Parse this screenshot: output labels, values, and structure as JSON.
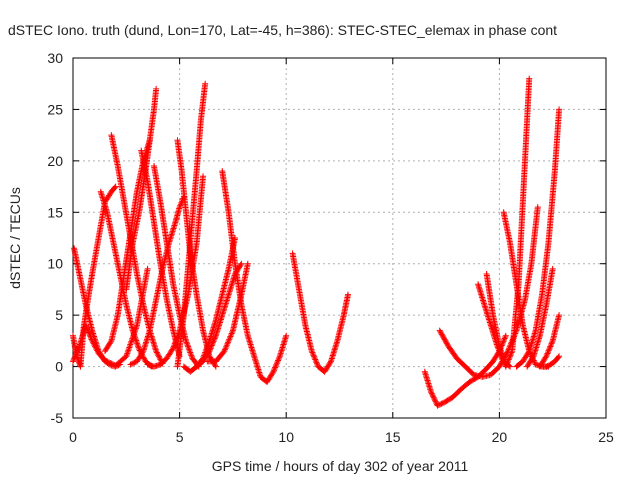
{
  "chart_data": {
    "type": "scatter",
    "title": "dSTEC Iono. truth (dund, Lon=170, Lat=-45, h=386): STEC-STEC_elemax in phase cont",
    "xlabel": "GPS time / hours of day 302 of year 2011",
    "ylabel": "dSTEC  / TECUs",
    "xlim": [
      0,
      25
    ],
    "ylim": [
      -5,
      30
    ],
    "xticks": [
      0,
      5,
      10,
      15,
      20,
      25
    ],
    "yticks": [
      -5,
      0,
      5,
      10,
      15,
      20,
      25,
      30
    ],
    "grid": true,
    "marker": "plus",
    "color": "#ff0000",
    "arcs": [
      {
        "x": [
          0.0,
          0.1,
          0.2,
          0.35,
          0.5,
          0.7,
          0.9,
          1.2,
          1.5,
          1.8,
          2.0
        ],
        "y": [
          3.0,
          1.8,
          0.9,
          0.0,
          3.8,
          6.5,
          9.0,
          12.5,
          16.0,
          17.0,
          17.5
        ]
      },
      {
        "x": [
          0.05,
          0.3,
          0.6,
          0.9,
          1.2,
          1.5,
          1.8,
          2.0,
          2.2
        ],
        "y": [
          11.5,
          9.0,
          6.0,
          3.5,
          1.5,
          0.5,
          0.1,
          0.0,
          0.2
        ]
      },
      {
        "x": [
          0.0,
          0.3,
          0.6,
          0.9,
          1.2,
          1.5,
          2.0,
          2.5,
          3.0,
          3.5
        ],
        "y": [
          0.5,
          2.0,
          4.0,
          2.5,
          1.3,
          0.6,
          0.1,
          1.0,
          4.0,
          9.5
        ]
      },
      {
        "x": [
          1.3,
          1.6,
          1.9,
          2.2,
          2.5,
          2.8,
          3.1,
          3.4,
          3.7
        ],
        "y": [
          17.0,
          15.0,
          12.0,
          9.0,
          6.0,
          3.5,
          1.7,
          0.5,
          0.0
        ]
      },
      {
        "x": [
          1.5,
          1.8,
          2.1,
          2.4,
          2.7,
          3.0,
          3.3,
          3.6
        ],
        "y": [
          1.5,
          2.5,
          5.0,
          9.0,
          13.0,
          17.0,
          20.0,
          22.0
        ]
      },
      {
        "x": [
          1.8,
          2.1,
          2.4,
          2.7,
          3.0,
          3.3,
          3.6,
          3.9,
          4.2
        ],
        "y": [
          22.5,
          19.5,
          16.0,
          12.5,
          9.0,
          6.0,
          3.5,
          1.5,
          0.3
        ]
      },
      {
        "x": [
          2.5,
          2.8,
          3.1,
          3.4,
          3.6,
          3.8,
          3.9
        ],
        "y": [
          7.5,
          12.0,
          15.0,
          19.0,
          22.0,
          25.0,
          27.0
        ]
      },
      {
        "x": [
          2.7,
          3.0,
          3.3,
          3.6,
          3.9,
          4.2,
          4.5,
          4.8,
          5.0,
          5.2
        ],
        "y": [
          0.2,
          0.5,
          1.5,
          3.5,
          6.5,
          9.5,
          12.0,
          14.0,
          15.5,
          16.5
        ]
      },
      {
        "x": [
          3.2,
          3.5,
          3.8,
          4.1,
          4.4,
          4.7,
          5.0
        ],
        "y": [
          21.0,
          18.0,
          14.0,
          10.0,
          6.5,
          3.5,
          1.0
        ]
      },
      {
        "x": [
          3.5,
          3.8,
          4.1,
          4.4,
          4.7,
          5.0,
          5.4,
          5.8,
          6.1
        ],
        "y": [
          0.2,
          0.0,
          0.2,
          0.8,
          1.8,
          3.5,
          7.0,
          12.0,
          18.5
        ]
      },
      {
        "x": [
          3.8,
          4.1,
          4.4,
          4.7,
          5.0,
          5.3,
          5.6,
          5.9
        ],
        "y": [
          19.5,
          16.0,
          12.0,
          8.0,
          5.0,
          2.5,
          0.8,
          0.0
        ]
      },
      {
        "x": [
          4.9,
          5.1,
          5.3,
          5.5,
          5.8,
          6.1,
          6.4,
          6.7
        ],
        "y": [
          22.0,
          19.0,
          15.0,
          11.0,
          7.0,
          3.5,
          1.0,
          0.0
        ]
      },
      {
        "x": [
          4.9,
          5.2,
          5.5,
          5.8,
          6.0,
          6.2
        ],
        "y": [
          0.0,
          5.0,
          12.0,
          19.0,
          24.0,
          27.5
        ]
      },
      {
        "x": [
          5.2,
          5.5,
          5.8,
          6.1,
          6.4,
          6.7,
          7.0,
          7.3,
          7.6,
          7.9
        ],
        "y": [
          0.0,
          -0.5,
          0.0,
          0.5,
          1.5,
          3.0,
          5.0,
          7.0,
          9.0,
          10.0
        ]
      },
      {
        "x": [
          5.8,
          6.1,
          6.4,
          6.7,
          7.0,
          7.3,
          7.6
        ],
        "y": [
          0.0,
          0.8,
          2.5,
          4.5,
          7.0,
          9.5,
          12.5
        ]
      },
      {
        "x": [
          7.0,
          7.3,
          7.6,
          7.9,
          8.2,
          8.5,
          8.8,
          9.1,
          9.4,
          9.7,
          10.0
        ],
        "y": [
          19.0,
          15.0,
          10.0,
          6.0,
          3.0,
          1.0,
          -1.0,
          -1.5,
          -0.5,
          1.0,
          3.0
        ]
      },
      {
        "x": [
          6.3,
          6.7,
          7.1,
          7.5,
          7.9,
          8.2
        ],
        "y": [
          0.5,
          0.5,
          1.5,
          3.5,
          7.0,
          10.0
        ]
      },
      {
        "x": [
          10.3,
          10.6,
          10.9,
          11.2,
          11.5,
          11.8,
          12.1,
          12.4,
          12.7,
          12.9
        ],
        "y": [
          11.0,
          7.5,
          4.0,
          1.5,
          0.0,
          -0.5,
          0.5,
          2.5,
          5.0,
          7.0
        ]
      },
      {
        "x": [
          16.5,
          16.8,
          17.1,
          17.4,
          17.8,
          18.2,
          18.6,
          19.0,
          19.4,
          19.7,
          20.0,
          20.3
        ],
        "y": [
          -0.5,
          -2.5,
          -3.8,
          -3.5,
          -3.0,
          -2.2,
          -1.5,
          -1.0,
          -0.2,
          0.5,
          1.5,
          3.0
        ]
      },
      {
        "x": [
          17.2,
          17.6,
          18.0,
          18.4,
          18.8,
          19.2,
          19.6,
          20.0,
          20.4,
          20.8,
          21.2,
          21.5,
          21.8
        ],
        "y": [
          3.5,
          2.0,
          0.8,
          0.0,
          -0.8,
          -1.0,
          -0.8,
          0.0,
          1.5,
          3.5,
          6.5,
          10.0,
          15.5
        ]
      },
      {
        "x": [
          19.0,
          19.3,
          19.6,
          19.9,
          20.2,
          20.5
        ],
        "y": [
          8.0,
          6.0,
          4.0,
          2.0,
          0.5,
          0.0
        ]
      },
      {
        "x": [
          19.4,
          19.7,
          20.0,
          20.3,
          20.6,
          20.9,
          21.2,
          21.4
        ],
        "y": [
          9.0,
          5.0,
          2.0,
          0.0,
          1.5,
          8.0,
          20.0,
          28.0
        ]
      },
      {
        "x": [
          20.2,
          20.5,
          20.8,
          21.1,
          21.4,
          21.7,
          22.0,
          22.3
        ],
        "y": [
          15.0,
          12.0,
          8.0,
          4.0,
          1.5,
          0.2,
          0.0,
          0.0
        ]
      },
      {
        "x": [
          20.8,
          21.1,
          21.4,
          21.7,
          22.0,
          22.3,
          22.6,
          22.8
        ],
        "y": [
          0.0,
          0.5,
          1.5,
          3.5,
          7.0,
          12.0,
          19.0,
          25.0
        ]
      },
      {
        "x": [
          21.3,
          21.6,
          21.9,
          22.2,
          22.5
        ],
        "y": [
          0.0,
          1.0,
          3.0,
          6.0,
          9.5
        ]
      },
      {
        "x": [
          22.0,
          22.2,
          22.4,
          22.6,
          22.8
        ],
        "y": [
          0.0,
          0.0,
          0.2,
          0.5,
          1.0
        ]
      },
      {
        "x": [
          21.9,
          22.2,
          22.5,
          22.8
        ],
        "y": [
          0.0,
          1.0,
          2.5,
          5.0
        ]
      }
    ]
  }
}
